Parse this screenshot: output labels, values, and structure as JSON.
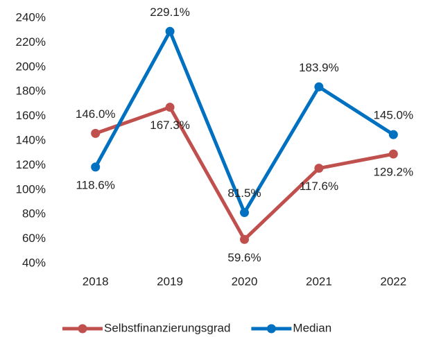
{
  "chart_data": {
    "type": "line",
    "categories": [
      "2018",
      "2019",
      "2020",
      "2021",
      "2022"
    ],
    "series": [
      {
        "name": "Selbstfinanzierungsgrad",
        "color": "#c0504d",
        "values": [
          146.0,
          167.3,
          59.6,
          117.6,
          129.2
        ],
        "value_labels": [
          "146.0%",
          "167.3%",
          "59.6%",
          "117.6%",
          "129.2%"
        ]
      },
      {
        "name": "Median",
        "color": "#0070c0",
        "values": [
          118.6,
          229.1,
          81.5,
          183.9,
          145.0
        ],
        "value_labels": [
          "118.6%",
          "229.1%",
          "81.5%",
          "183.9%",
          "145.0%"
        ]
      }
    ],
    "ylim": [
      40,
      240
    ],
    "yticks": [
      {
        "value": 40,
        "label": "40%"
      },
      {
        "value": 60,
        "label": "60%"
      },
      {
        "value": 80,
        "label": "80%"
      },
      {
        "value": 100,
        "label": "100%"
      },
      {
        "value": 120,
        "label": "120%"
      },
      {
        "value": 140,
        "label": "140%"
      },
      {
        "value": 160,
        "label": "160%"
      },
      {
        "value": 180,
        "label": "180%"
      },
      {
        "value": 200,
        "label": "200%"
      },
      {
        "value": 220,
        "label": "220%"
      },
      {
        "value": 240,
        "label": "240%"
      }
    ],
    "grid": false,
    "legend": "bottom"
  }
}
